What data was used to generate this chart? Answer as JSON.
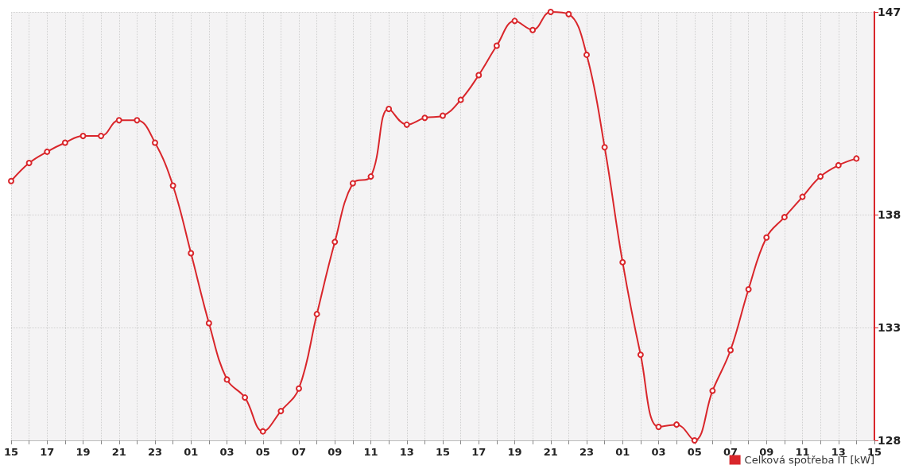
{
  "chart_data": {
    "type": "line",
    "categories": [
      "15",
      null,
      "17",
      null,
      "19",
      null,
      "21",
      null,
      "23",
      null,
      "01",
      null,
      "03",
      null,
      "05",
      null,
      "07",
      null,
      "09",
      null,
      "11",
      null,
      "13",
      null,
      "15",
      null,
      "17",
      null,
      "19",
      null,
      "21",
      null,
      "23",
      null,
      "01",
      null,
      "03",
      null,
      "05",
      null,
      "07",
      null,
      "09",
      null,
      "11",
      null,
      "13",
      null,
      "15"
    ],
    "series": [
      {
        "name": "Celková spotřeba IT [kW]",
        "color": "#d9262b",
        "values": [
          139.5,
          140.3,
          140.8,
          141.2,
          141.5,
          141.5,
          142.2,
          142.2,
          141.2,
          139.3,
          136.3,
          133.2,
          130.7,
          129.9,
          128.4,
          129.3,
          130.3,
          133.6,
          136.8,
          139.4,
          139.7,
          142.7,
          142.0,
          142.3,
          142.4,
          143.1,
          144.2,
          145.5,
          146.6,
          146.2,
          147.0,
          146.9,
          145.1,
          141.0,
          135.9,
          131.8,
          128.6,
          128.7,
          128.0,
          130.2,
          132.0,
          134.7,
          137.0,
          137.9,
          138.8,
          139.7,
          140.2,
          140.5,
          null
        ]
      }
    ],
    "ylim": [
      128,
      147
    ],
    "yticks": [
      128,
      133,
      138,
      147
    ],
    "grid": true,
    "legend": "bottom right",
    "marker": "circle",
    "line_style": "solid"
  }
}
